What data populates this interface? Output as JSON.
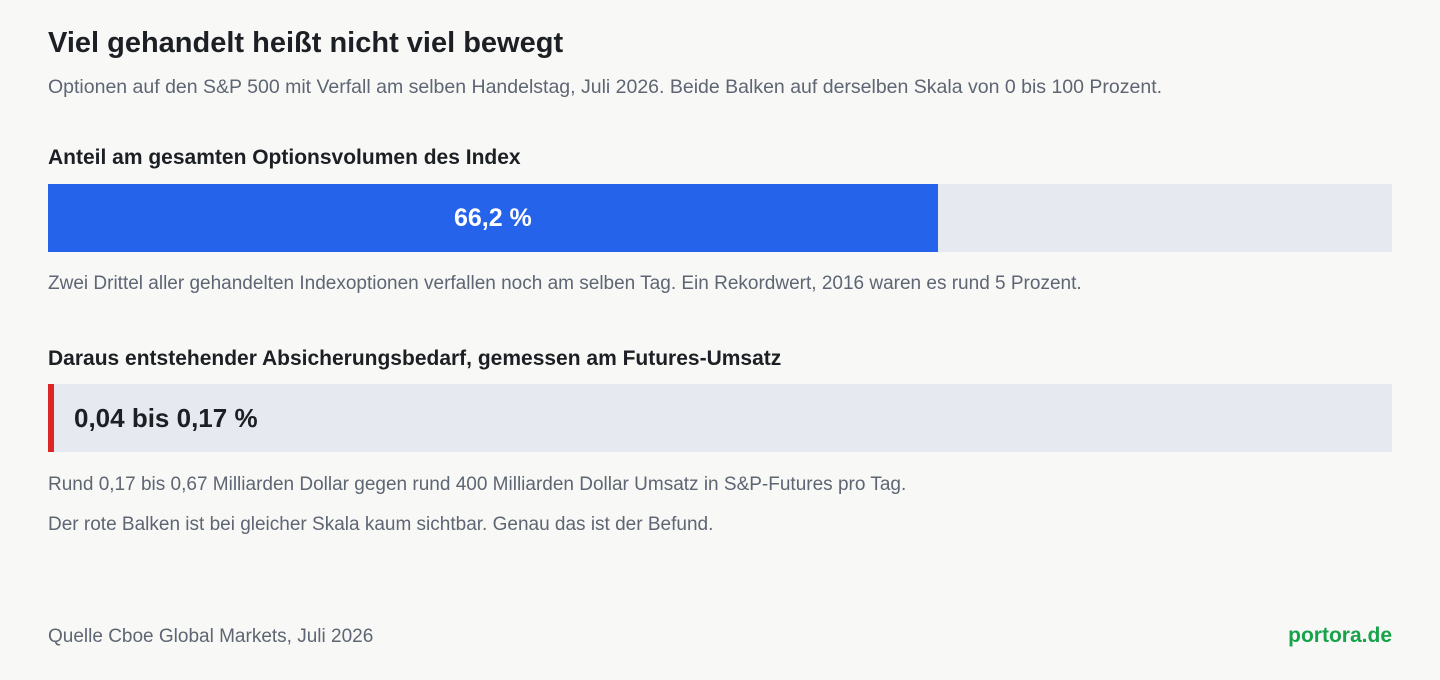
{
  "header": {
    "title": "Viel gehandelt heißt nicht viel bewegt",
    "subtitle": "Optionen auf den S&P 500 mit Verfall am selben Handelstag, Juli 2026. Beide Balken auf derselben Skala von 0 bis 100 Prozent."
  },
  "chart_data": {
    "type": "bar",
    "orientation": "horizontal",
    "xlim": [
      0,
      100
    ],
    "unit": "%",
    "grid": false,
    "colors": {
      "primary_fill": "#2563eb",
      "hedge_fill": "#dc2626",
      "track": "#e6e9ef"
    },
    "bars": [
      {
        "label": "Anteil am gesamten Optionsvolumen des Index",
        "value": 66.2,
        "value_text": "66,2 %",
        "color": "#2563eb",
        "notes": [
          "Zwei Drittel aller gehandelten Indexoptionen verfallen noch am selben Tag. Ein Rekordwert, 2016 waren es rund 5 Prozent."
        ]
      },
      {
        "label": "Daraus entstehender Absicherungsbedarf, gemessen am Futures-Umsatz",
        "value_range": [
          0.04,
          0.17
        ],
        "value_text": "0,04 bis 0,17 %",
        "color": "#dc2626",
        "notes": [
          "Rund 0,17 bis 0,67 Milliarden Dollar gegen rund 400 Milliarden Dollar Umsatz in S&P-Futures pro Tag.",
          "Der rote Balken ist bei gleicher Skala kaum sichtbar. Genau das ist der Befund."
        ]
      }
    ]
  },
  "footer": {
    "source": "Quelle Cboe Global Markets, Juli 2026",
    "brand": "portora.de"
  }
}
